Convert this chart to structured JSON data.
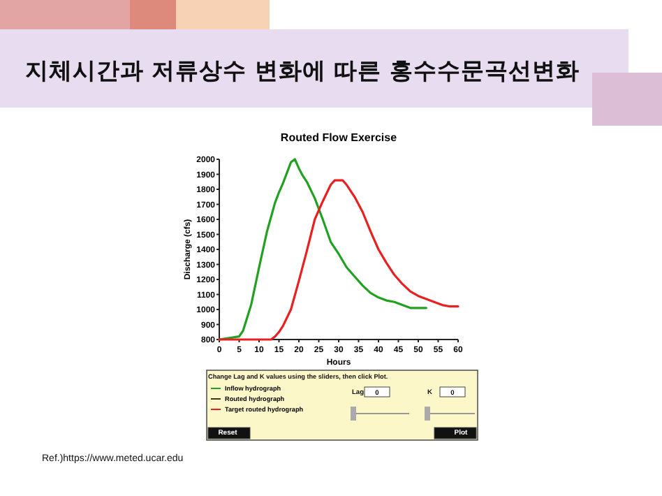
{
  "chart_data": {
    "type": "line",
    "title": "지체시간과 저류상수 변화에 따른 홍수수문곡선변화",
    "subtitle": "Routed Flow Exercise",
    "xlabel": "Hours",
    "ylabel": "Discharge (cfs)",
    "xlim": [
      0,
      60
    ],
    "ylim": [
      800,
      2000
    ],
    "xticks": [
      0,
      5,
      10,
      15,
      20,
      25,
      30,
      35,
      40,
      45,
      50,
      55,
      60
    ],
    "yticks": [
      800,
      900,
      1000,
      1100,
      1200,
      1300,
      1400,
      1500,
      1600,
      1700,
      1800,
      1900,
      2000
    ],
    "grid": false,
    "legend": "bottom",
    "marker": "none",
    "line_style": "solid",
    "series": [
      {
        "name": "Inflow hydrograph",
        "color": "#22a022",
        "x": [
          0,
          5,
          6,
          8,
          10,
          12,
          14,
          15,
          16,
          17,
          18,
          19,
          20,
          21,
          22,
          24,
          26,
          28,
          30,
          32,
          34,
          36,
          38,
          40,
          42,
          44,
          46,
          48,
          50,
          52
        ],
        "values": [
          800,
          820,
          860,
          1030,
          1280,
          1520,
          1710,
          1780,
          1840,
          1910,
          1980,
          2000,
          1940,
          1890,
          1850,
          1740,
          1600,
          1450,
          1370,
          1280,
          1220,
          1160,
          1110,
          1080,
          1060,
          1050,
          1030,
          1010,
          1010,
          1010
        ]
      },
      {
        "name": "Routed hydrograph",
        "color": "#3a3a1a"
      },
      {
        "name": "Target routed hydrograph",
        "color": "#e82020",
        "x": [
          0,
          13,
          14,
          15,
          16,
          18,
          20,
          22,
          24,
          26,
          28,
          29,
          30,
          31,
          32,
          34,
          36,
          38,
          40,
          42,
          44,
          46,
          48,
          50,
          52,
          54,
          56,
          58,
          60
        ],
        "values": [
          800,
          800,
          820,
          850,
          890,
          1000,
          1190,
          1390,
          1600,
          1720,
          1830,
          1860,
          1860,
          1860,
          1830,
          1750,
          1650,
          1520,
          1400,
          1310,
          1230,
          1170,
          1120,
          1090,
          1070,
          1050,
          1030,
          1020,
          1020
        ]
      }
    ],
    "annotations": [
      "Change Lag and K values using the sliders, then click Plot.",
      "Lag",
      "0",
      "K",
      "0",
      "Reset",
      "Plot",
      "Ref.)https://www.meted.ucar.edu"
    ]
  }
}
